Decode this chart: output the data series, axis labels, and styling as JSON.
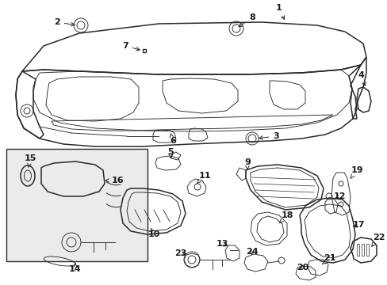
{
  "bg_color": "#ffffff",
  "line_color": "#2a2a2a",
  "label_color": "#1a1a1a",
  "fig_width": 4.89,
  "fig_height": 3.6,
  "dpi": 100,
  "font_size": 8.0,
  "font_weight": "bold",
  "arrow_color": "#2a2a2a",
  "lw_main": 1.1,
  "lw_thin": 0.65,
  "lw_thick": 1.4
}
